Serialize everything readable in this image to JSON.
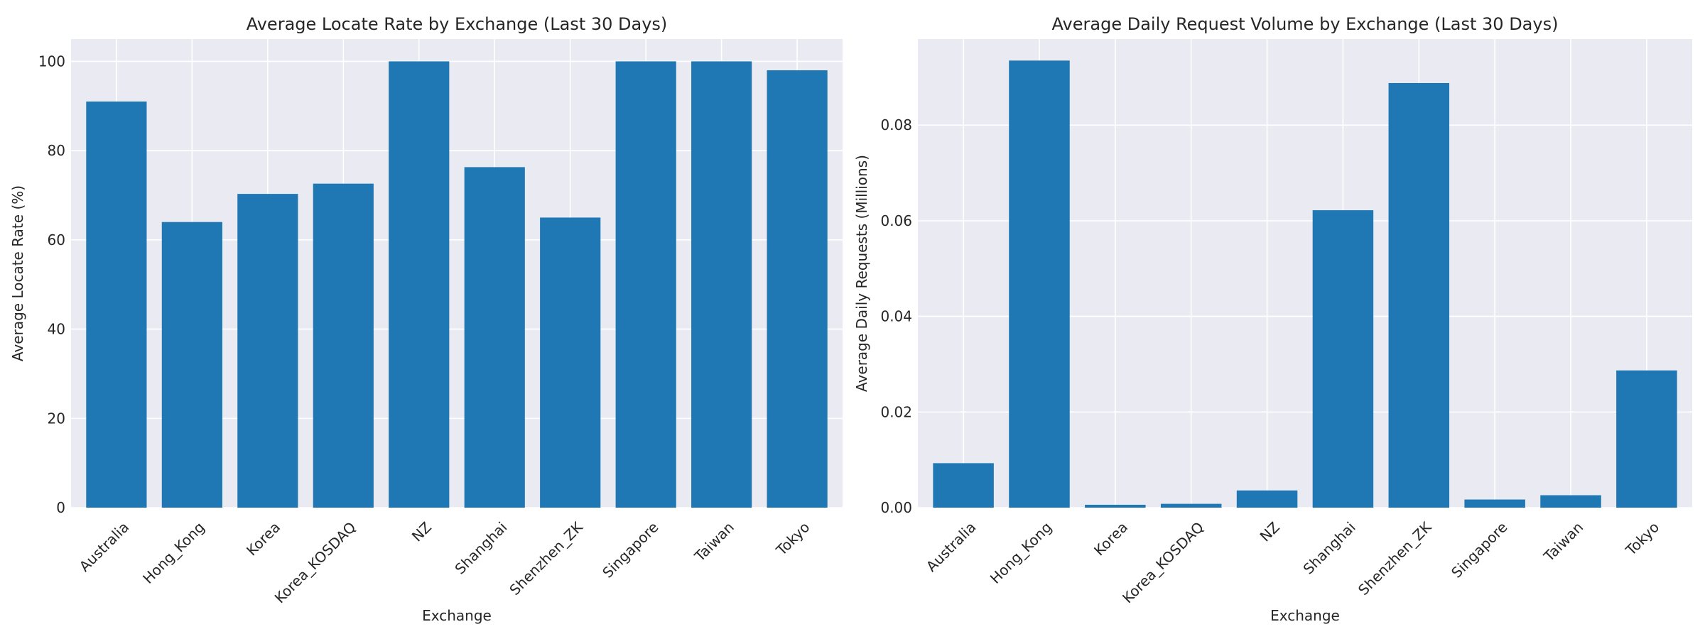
{
  "chart_data": [
    {
      "type": "bar",
      "title": "Average Locate Rate by Exchange (Last 30 Days)",
      "xlabel": "Exchange",
      "ylabel": "Average Locate Rate (%)",
      "categories": [
        "Australia",
        "Hong_Kong",
        "Korea",
        "Korea_KOSDAQ",
        "NZ",
        "Shanghai",
        "Shenzhen_ZK",
        "Singapore",
        "Taiwan",
        "Tokyo"
      ],
      "values": [
        91.0,
        64.0,
        70.3,
        72.6,
        100.0,
        76.3,
        65.0,
        100.0,
        100.0,
        98.0
      ],
      "ylim": [
        0,
        105
      ],
      "yticks": [
        0,
        20,
        40,
        60,
        80,
        100
      ],
      "ytick_labels": [
        "0",
        "20",
        "40",
        "60",
        "80",
        "100"
      ],
      "grid": true,
      "color": "#1f77b4"
    },
    {
      "type": "bar",
      "title": "Average Daily Request Volume by Exchange (Last 30 Days)",
      "xlabel": "Exchange",
      "ylabel": "Average Daily Requests (Millions)",
      "categories": [
        "Australia",
        "Hong_Kong",
        "Korea",
        "Korea_KOSDAQ",
        "NZ",
        "Shanghai",
        "Shenzhen_ZK",
        "Singapore",
        "Taiwan",
        "Tokyo"
      ],
      "values": [
        0.0093,
        0.0935,
        0.0006,
        0.0008,
        0.0036,
        0.0622,
        0.0888,
        0.0017,
        0.0026,
        0.0287
      ],
      "ylim": [
        0,
        0.098
      ],
      "yticks": [
        0,
        0.02,
        0.04,
        0.06,
        0.08
      ],
      "ytick_labels": [
        "0.00",
        "0.02",
        "0.04",
        "0.06",
        "0.08"
      ],
      "grid": true,
      "color": "#1f77b4"
    }
  ]
}
